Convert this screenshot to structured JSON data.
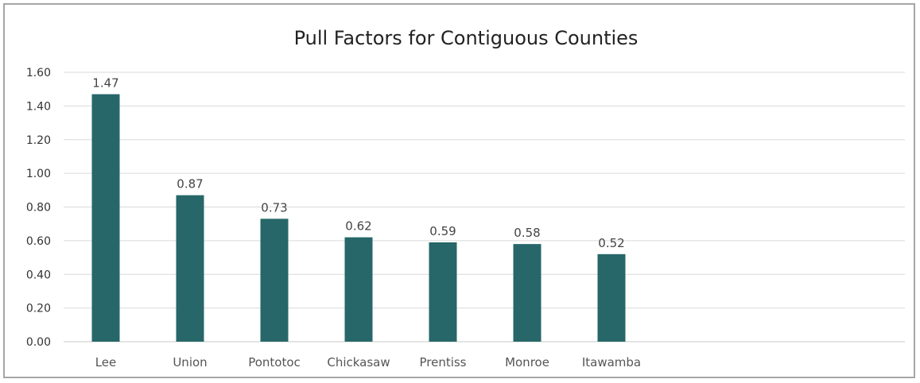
{
  "chart_data": {
    "type": "bar",
    "title": "Pull Factors for Contiguous Counties",
    "categories": [
      "Lee",
      "Union",
      "Pontotoc",
      "Chickasaw",
      "Prentiss",
      "Monroe",
      "Itawamba"
    ],
    "values": [
      1.47,
      0.87,
      0.73,
      0.62,
      0.59,
      0.58,
      0.52
    ],
    "data_labels": [
      "1.47",
      "0.87",
      "0.73",
      "0.62",
      "0.59",
      "0.58",
      "0.52"
    ],
    "y_ticks": [
      "0.00",
      "0.20",
      "0.40",
      "0.60",
      "0.80",
      "1.00",
      "1.20",
      "1.40",
      "1.60"
    ],
    "ylim": [
      0,
      1.6
    ],
    "grid": true,
    "legend": "none",
    "bar_color": "#276769"
  }
}
